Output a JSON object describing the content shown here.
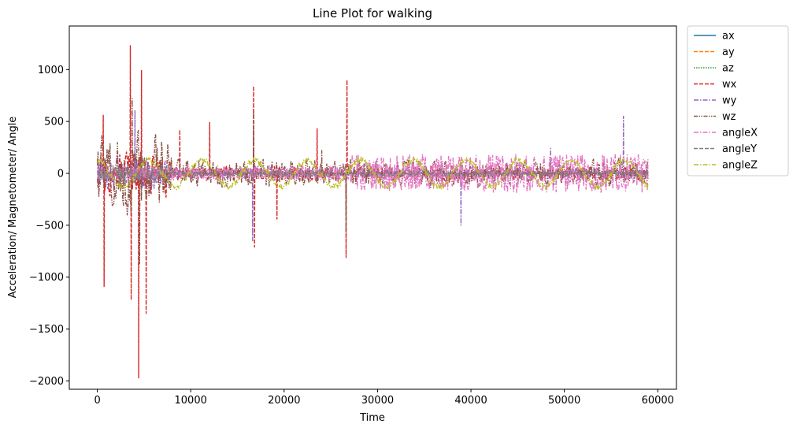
{
  "chart_data": {
    "type": "line",
    "title": "Line Plot for walking",
    "xlabel": "Time",
    "ylabel": "Acceleration/ Magnetometer/ Angle",
    "xlim": [
      -3000,
      62000
    ],
    "ylim": [
      -2080,
      1420
    ],
    "xticks": [
      0,
      10000,
      20000,
      30000,
      40000,
      50000,
      60000
    ],
    "xtick_labels": [
      "0",
      "10000",
      "20000",
      "30000",
      "40000",
      "50000",
      "60000"
    ],
    "yticks": [
      -2000,
      -1500,
      -1000,
      -500,
      0,
      500,
      1000
    ],
    "ytick_labels": [
      "−2000",
      "−1500",
      "−1000",
      "−500",
      "0",
      "500",
      "1000"
    ],
    "grid": false,
    "legend_position": "outside-top-right",
    "n_samples": 59000,
    "series": [
      {
        "name": "ax",
        "color": "#1f77b4",
        "dash": "solid",
        "amplitude": 4,
        "peaks": []
      },
      {
        "name": "ay",
        "color": "#ff7f0e",
        "dash": "dashed",
        "amplitude": 4,
        "peaks": []
      },
      {
        "name": "az",
        "color": "#2ca02c",
        "dash": "dotted",
        "amplitude": 4,
        "peaks": []
      },
      {
        "name": "wx",
        "color": "#d62728",
        "dash": "dashed",
        "amplitude": 60,
        "peaks": [
          [
            600,
            560
          ],
          [
            700,
            -1090
          ],
          [
            3500,
            1230
          ],
          [
            3600,
            -1220
          ],
          [
            4400,
            -1970
          ],
          [
            4700,
            990
          ],
          [
            5200,
            -1350
          ],
          [
            8800,
            420
          ],
          [
            12000,
            490
          ],
          [
            16700,
            840
          ],
          [
            16800,
            -710
          ],
          [
            26700,
            900
          ],
          [
            26600,
            -810
          ],
          [
            19200,
            -440
          ],
          [
            23500,
            430
          ]
        ]
      },
      {
        "name": "wy",
        "color": "#9467bd",
        "dash": "dashdot",
        "amplitude": 50,
        "peaks": [
          [
            4000,
            610
          ],
          [
            16600,
            -650
          ],
          [
            38900,
            -500
          ],
          [
            56300,
            550
          ],
          [
            48500,
            240
          ]
        ]
      },
      {
        "name": "wz",
        "color": "#8c564b",
        "dash": "dashdotdot",
        "amplitude": 110,
        "peaks": [
          [
            3700,
            720
          ],
          [
            4500,
            -870
          ],
          [
            16700,
            590
          ],
          [
            26600,
            -560
          ],
          [
            24000,
            220
          ]
        ]
      },
      {
        "name": "angleX",
        "color": "#e377c2",
        "dash": "dashdot",
        "amplitude": 178,
        "peaks": []
      },
      {
        "name": "angleY",
        "color": "#7f7f7f",
        "dash": "dashed",
        "amplitude": 25,
        "peaks": []
      },
      {
        "name": "angleZ",
        "color": "#bcbd22",
        "dash": "dashdot",
        "amplitude": 160,
        "peaks": []
      }
    ]
  }
}
